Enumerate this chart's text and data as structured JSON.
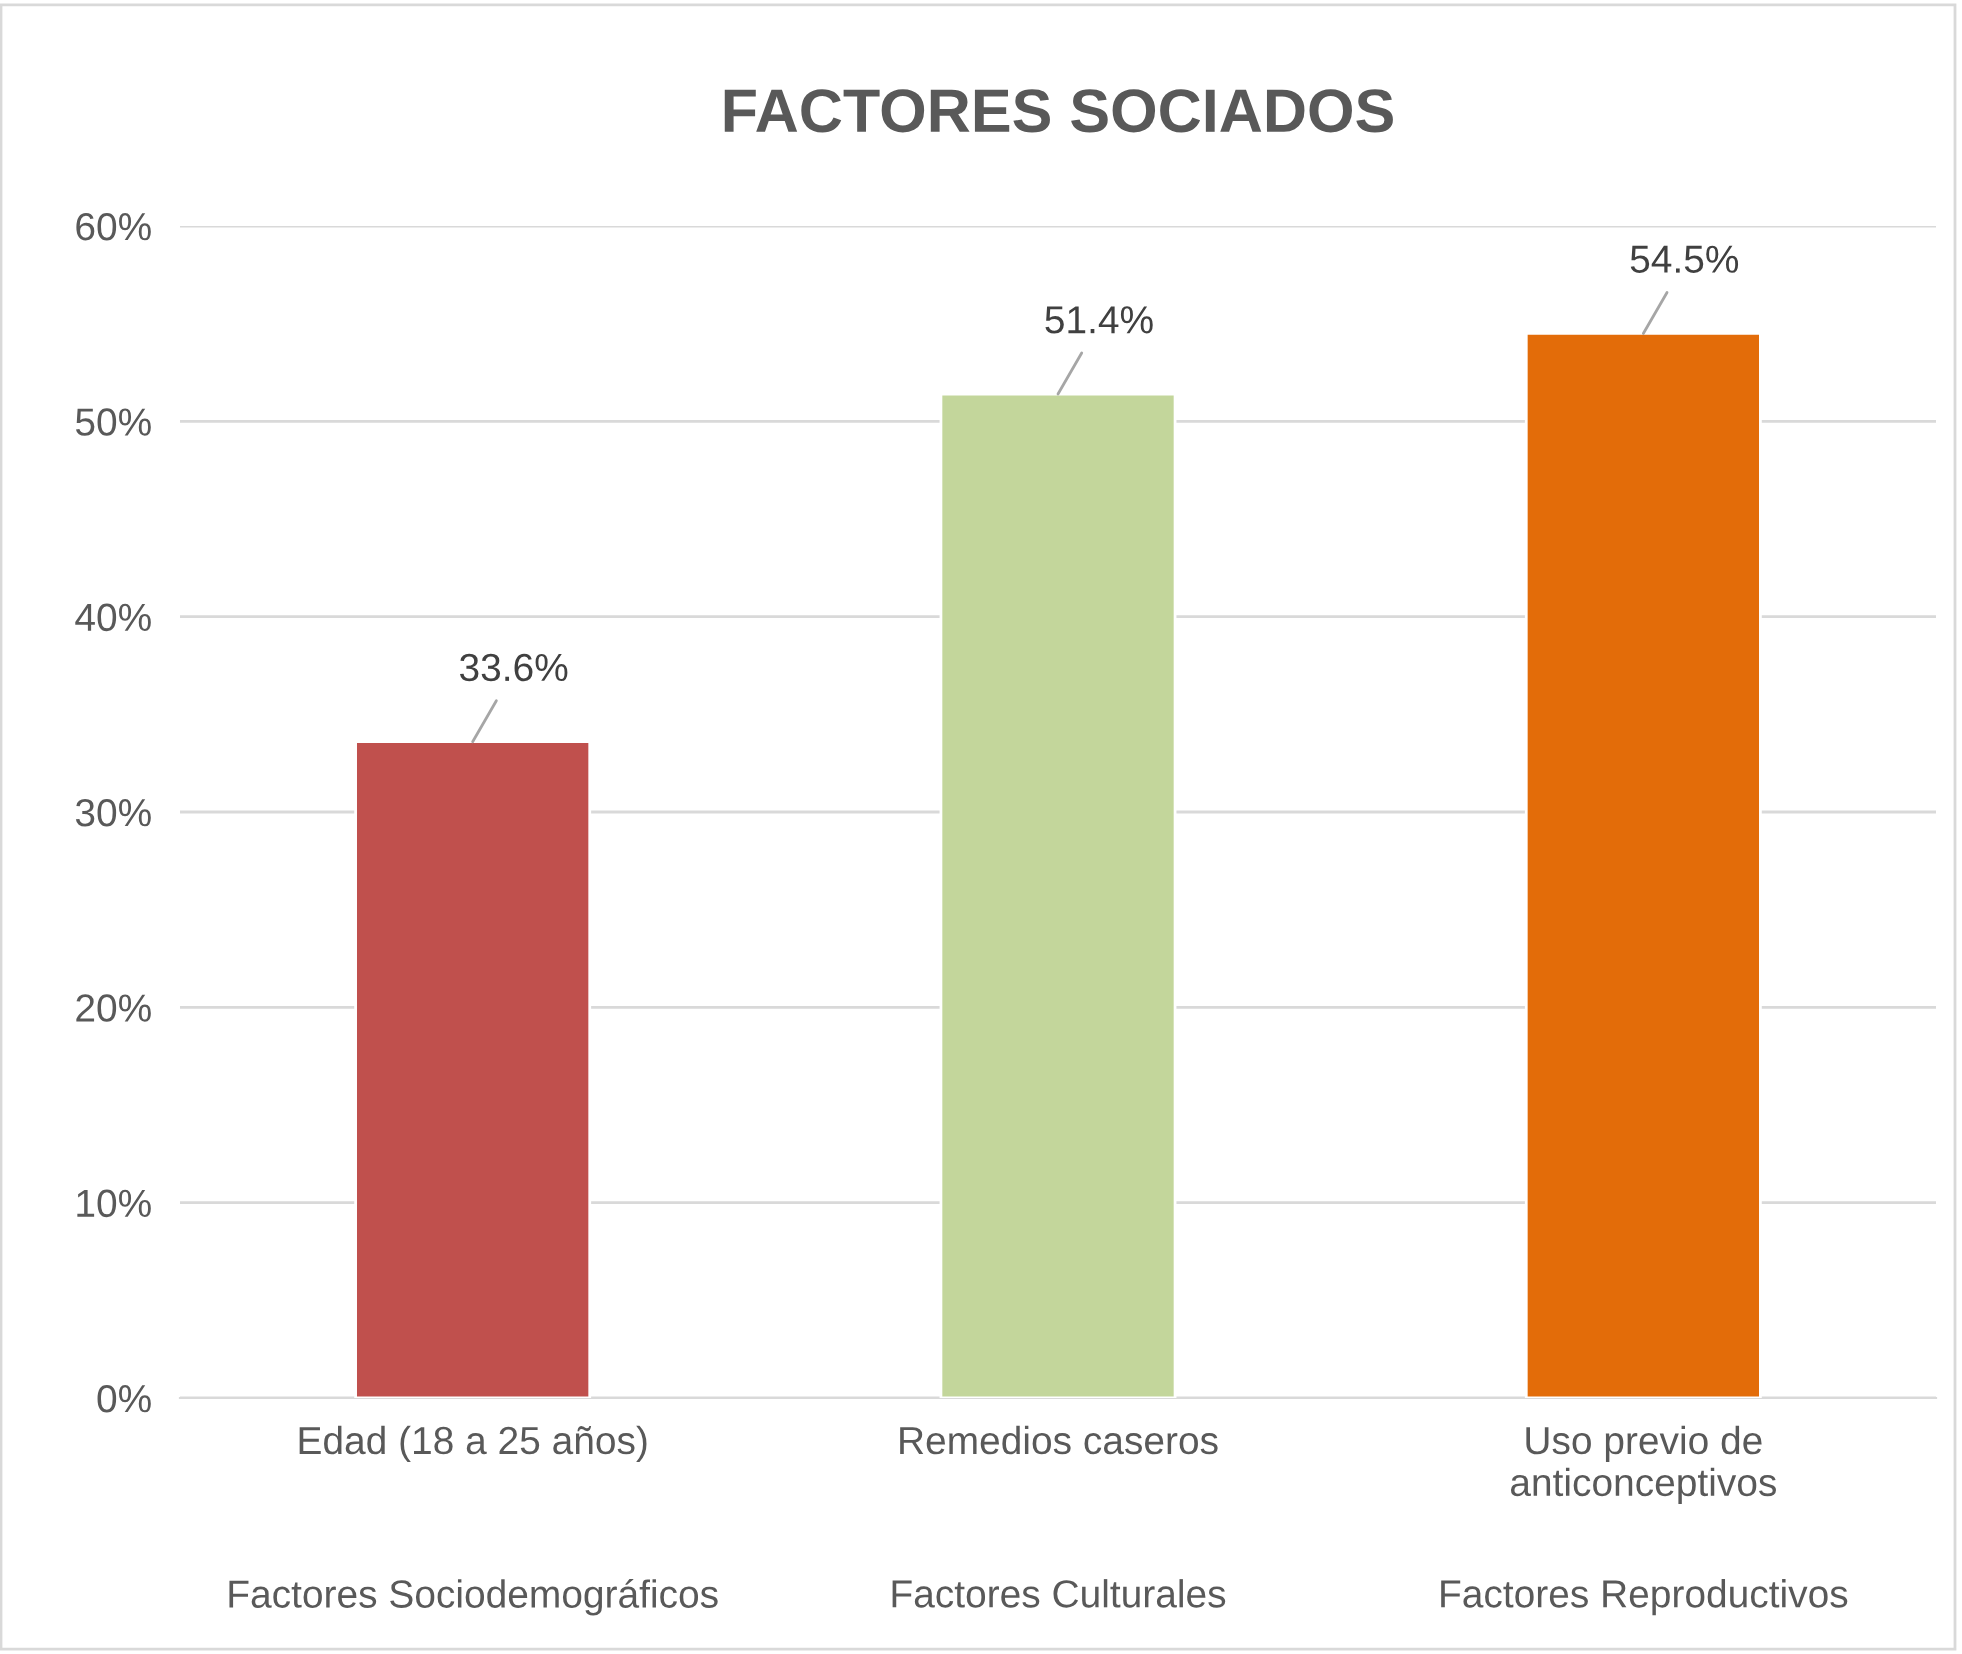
{
  "chart_data": {
    "type": "bar",
    "title": "FACTORES SOCIADOS",
    "categories": [
      "Edad (18 a 25 años)",
      "Remedios caseros",
      "Uso previo de\nanticonceptivos"
    ],
    "values": [
      33.6,
      51.4,
      54.5
    ],
    "colors": [
      "#c0504d",
      "#c3d69b",
      "#e36c09"
    ],
    "value_labels": [
      "33.6%",
      "51.4%",
      "54.5%"
    ],
    "annotations": [
      "Factores Sociodemográficos",
      "Factores Culturales",
      "Factores Reproductivos"
    ],
    "ylim": [
      0,
      60
    ],
    "yticks": [
      {
        "value": 0,
        "label": "0%"
      },
      {
        "value": 10,
        "label": "10%"
      },
      {
        "value": 20,
        "label": "20%"
      },
      {
        "value": 30,
        "label": "30%"
      },
      {
        "value": 40,
        "label": "40%"
      },
      {
        "value": 50,
        "label": "50%"
      },
      {
        "value": 60,
        "label": "60%"
      }
    ],
    "grid": "y",
    "legend": false
  }
}
